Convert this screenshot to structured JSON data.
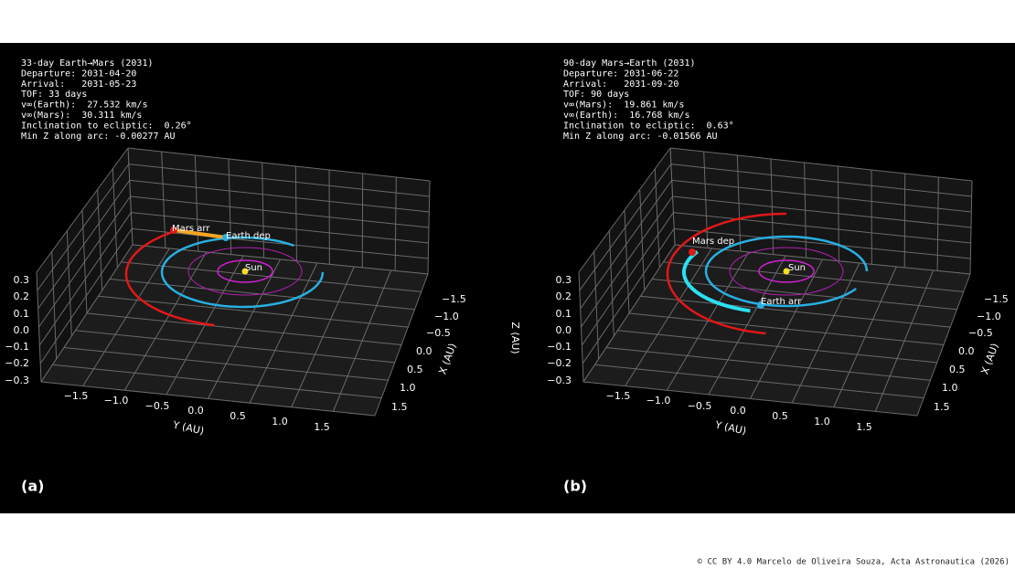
{
  "panels": [
    {
      "info": [
        "33-day Earth→Mars (2031)",
        "Departure: 2031-04-20",
        "Arrival:   2031-05-23",
        "TOF: 33 days",
        "v∞(Earth):  27.532 km/s",
        "v∞(Mars):  30.311 km/s",
        "Inclination to ecliptic:  0.26°",
        "Min Z along arc: -0.00277 AU"
      ],
      "markers": [
        "Mars arr",
        "Earth dep",
        "Sun"
      ],
      "z_ticks": [
        "0.3",
        "0.2",
        "0.1",
        "0.0",
        "−0.1",
        "−0.2",
        "−0.3"
      ],
      "y_ticks": [
        "−1.5",
        "−1.0",
        "−0.5",
        "0.0",
        "0.5",
        "1.0",
        "1.5"
      ],
      "x_ticks": [
        "−1.5",
        "−1.0",
        "−0.5",
        "0.0",
        "0.5",
        "1.0",
        "1.5"
      ],
      "y_label": "Y (AU)",
      "x_label": "X (AU)",
      "letter": "(a)"
    },
    {
      "info": [
        "90-day Mars→Earth (2031)",
        "Departure: 2031-06-22",
        "Arrival:   2031-09-20",
        "TOF: 90 days",
        "v∞(Mars):  19.861 km/s",
        "v∞(Earth):  16.768 km/s",
        "Inclination to ecliptic:  0.63°",
        "Min Z along arc: -0.01566 AU"
      ],
      "markers": [
        "Mars dep",
        "Earth arr",
        "Sun"
      ],
      "z_ticks": [
        "0.3",
        "0.2",
        "0.1",
        "0.0",
        "−0.1",
        "−0.2",
        "−0.3"
      ],
      "y_ticks": [
        "−1.5",
        "−1.0",
        "−0.5",
        "0.0",
        "0.5",
        "1.0",
        "1.5"
      ],
      "x_ticks": [
        "−1.5",
        "−1.0",
        "−0.5",
        "0.0",
        "0.5",
        "1.0",
        "1.5"
      ],
      "y_label": "Y (AU)",
      "x_label": "X (AU)",
      "z_label": "Z (AU)",
      "letter": "(b)"
    }
  ],
  "credit": "© CC BY 4.0 Marcelo de Oliveira Souza, Acta Astronautica (2026)"
}
